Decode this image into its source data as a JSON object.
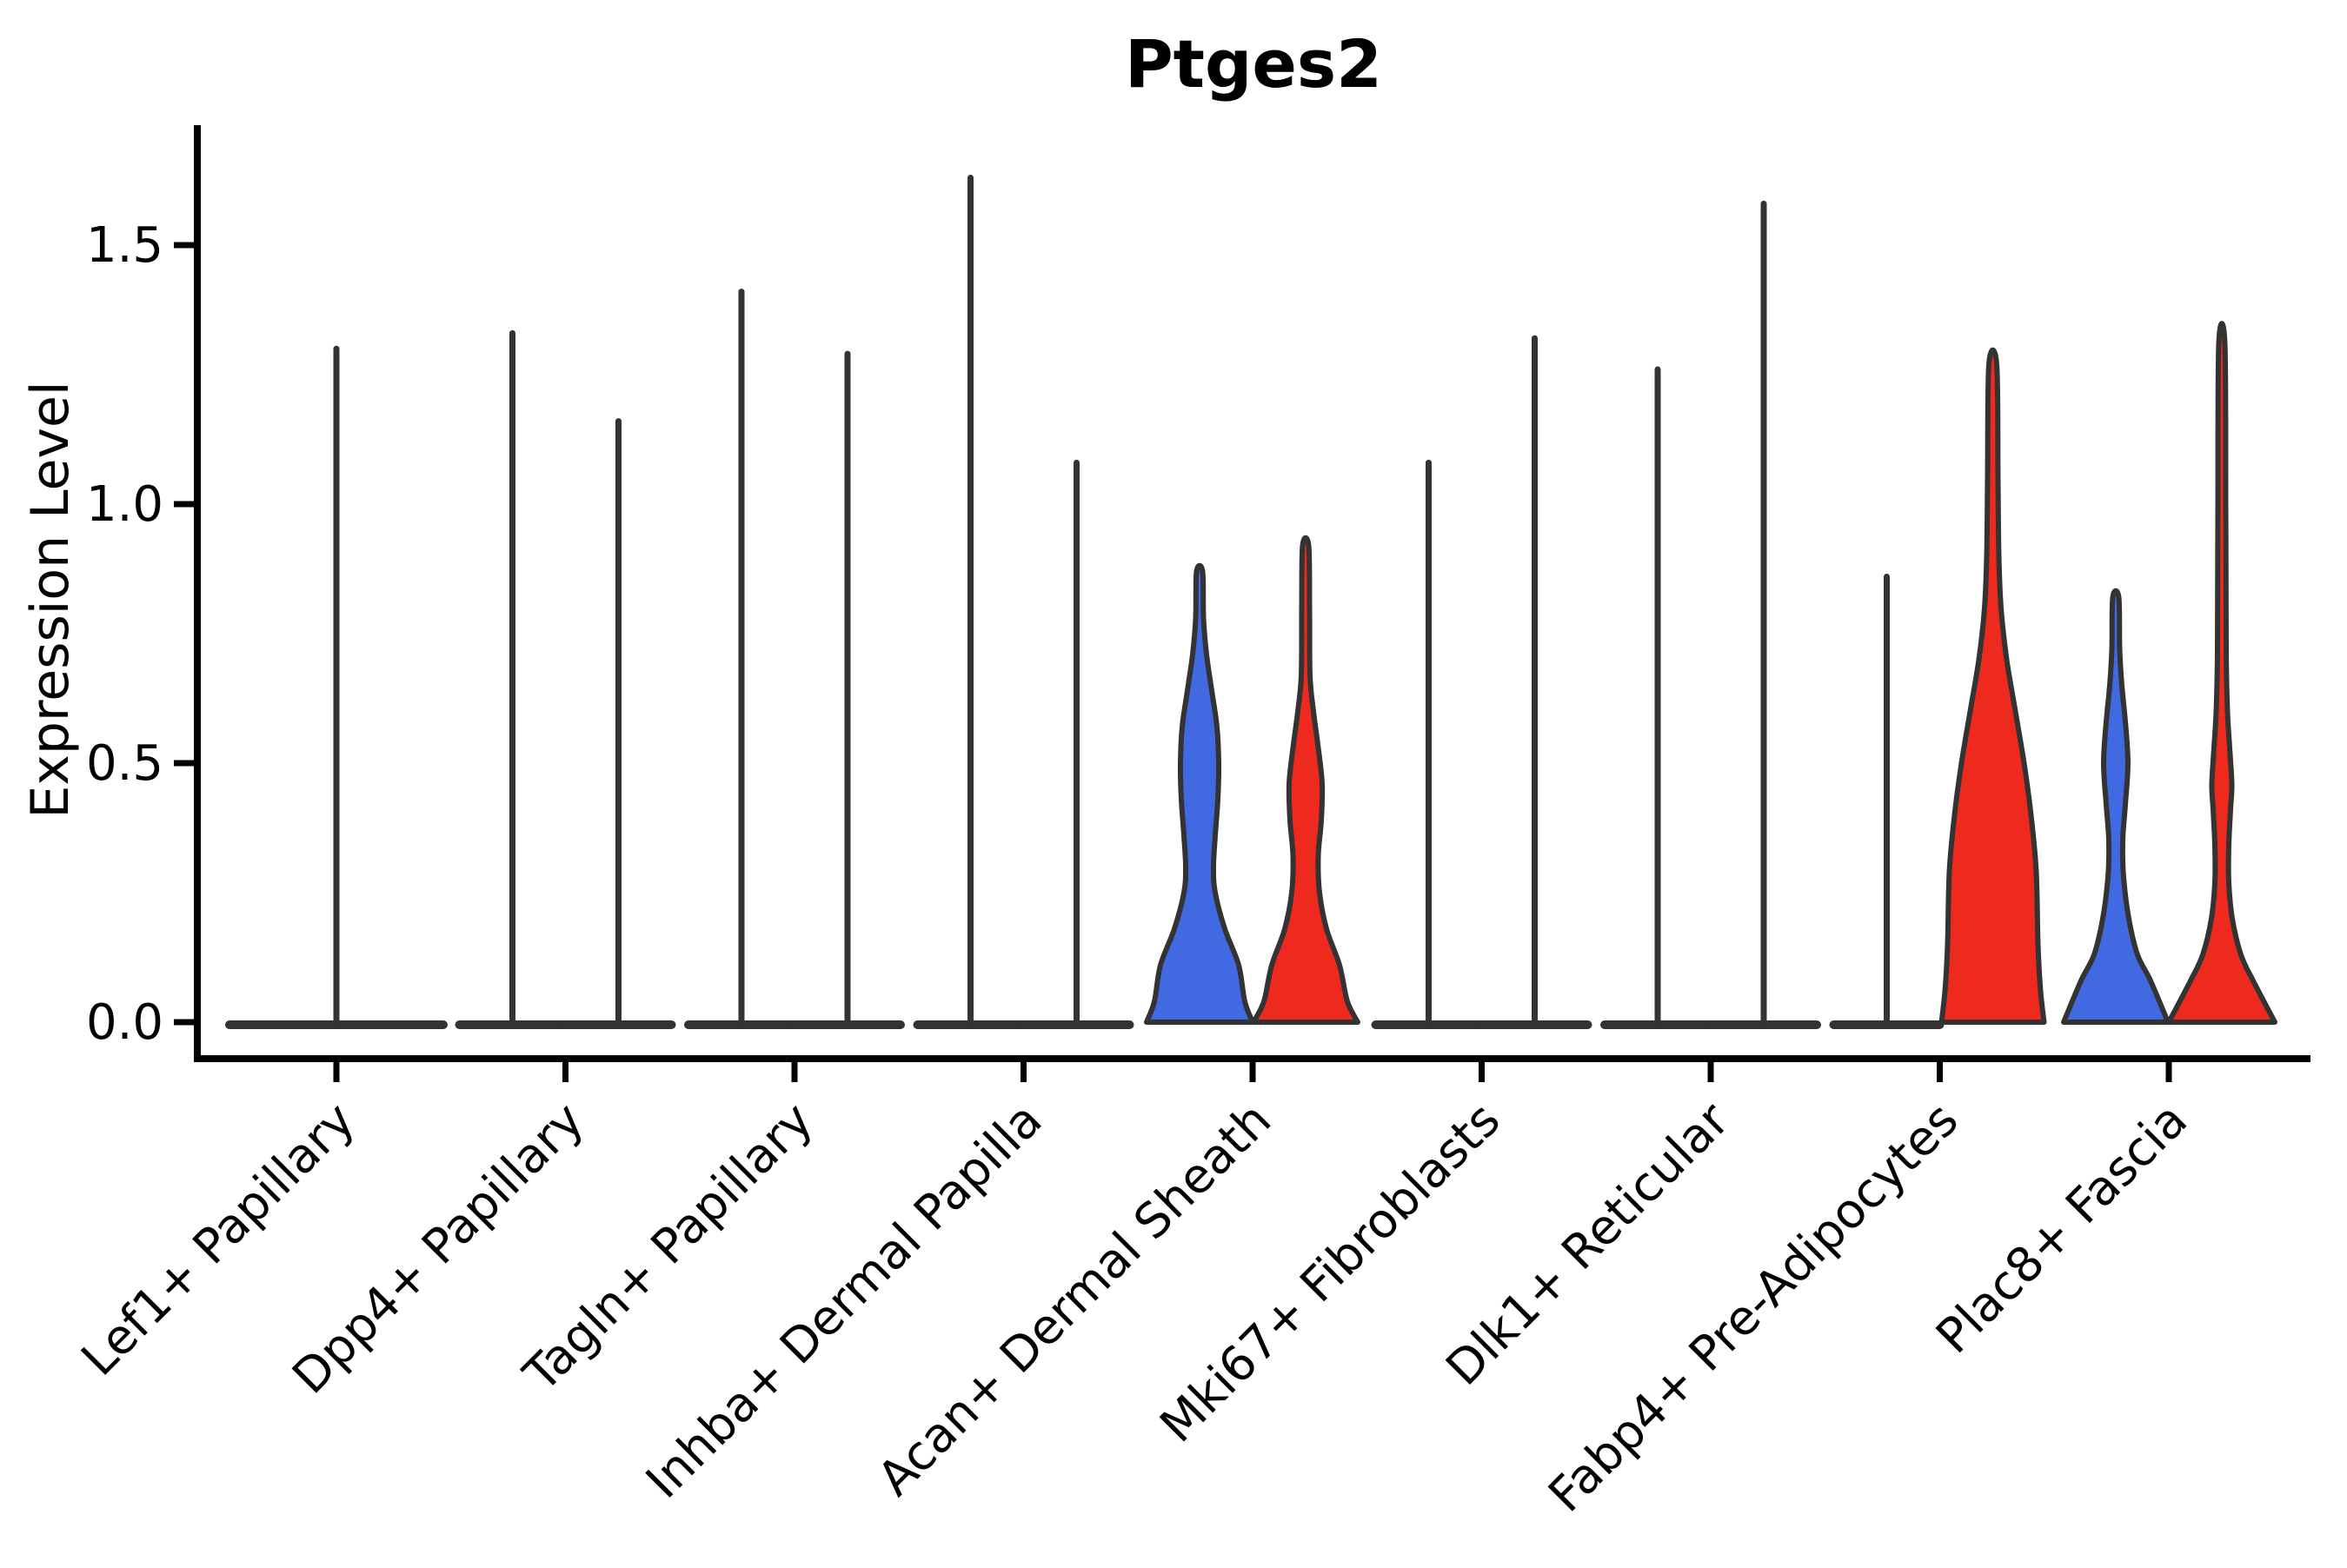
{
  "title": "Ptges2",
  "y_axis": {
    "label": "Expression Level"
  },
  "colors": {
    "group1_fill": "#4169E1",
    "group2_fill": "#EE2A1F",
    "violin_outline": "#333333",
    "axis_color": "#000000"
  },
  "chart_data": {
    "type": "violin",
    "title": "Ptges2",
    "xlabel": "",
    "ylabel": "Expression Level",
    "ylim": [
      0,
      1.73
    ],
    "yticks": [
      0.0,
      0.5,
      1.0,
      1.5
    ],
    "ytick_labels": [
      "0.0",
      "0.5",
      "1.0",
      "1.5"
    ],
    "grid": false,
    "legend_position": "none",
    "categories": [
      "Lef1+ Papillary",
      "Dpp4+ Papillary",
      "Tagln+ Papillary",
      "Inhba+ Dermal Papilla",
      "Acan+ Dermal Sheath",
      "Mki67+ Fibroblasts",
      "Dlk1+ Reticular",
      "Fabp4+ Pre-Adipocytes",
      "Plac8+ Fascia"
    ],
    "series": [
      {
        "name": "group-1-blue",
        "color": "#4169E1",
        "max_expression": [
          1.3,
          1.33,
          1.41,
          1.63,
          0.87,
          1.08,
          1.26,
          0.86,
          0.82
        ]
      },
      {
        "name": "group-2-red",
        "color": "#EE2A1F",
        "max_expression": [
          null,
          1.16,
          1.29,
          1.08,
          0.92,
          1.32,
          1.58,
          1.27,
          1.31
        ]
      }
    ],
    "violins": [
      {
        "category": "Lef1+ Papillary",
        "single": true,
        "items": [
          {
            "group": 0,
            "type": "spike",
            "top": 1.3
          }
        ]
      },
      {
        "category": "Dpp4+ Papillary",
        "items": [
          {
            "group": 0,
            "type": "spike",
            "top": 1.33
          },
          {
            "group": 1,
            "type": "spike",
            "top": 1.16
          }
        ]
      },
      {
        "category": "Tagln+ Papillary",
        "items": [
          {
            "group": 0,
            "type": "spike",
            "top": 1.41
          },
          {
            "group": 1,
            "type": "spike",
            "top": 1.29
          }
        ]
      },
      {
        "category": "Inhba+ Dermal Papilla",
        "items": [
          {
            "group": 0,
            "type": "spike",
            "top": 1.63
          },
          {
            "group": 1,
            "type": "spike",
            "top": 1.08
          }
        ]
      },
      {
        "category": "Acan+ Dermal Sheath",
        "items": [
          {
            "group": 0,
            "type": "shape",
            "top": 0.87,
            "profile": [
              [
                0,
                61
              ],
              [
                0.04,
                52
              ],
              [
                0.11,
                45
              ],
              [
                0.18,
                29
              ],
              [
                0.25,
                18
              ],
              [
                0.3,
                16
              ],
              [
                0.36,
                18
              ],
              [
                0.43,
                21
              ],
              [
                0.5,
                22
              ],
              [
                0.57,
                20
              ],
              [
                0.64,
                14
              ],
              [
                0.71,
                8
              ],
              [
                0.78,
                4.5
              ],
              [
                0.87,
                3.5
              ]
            ]
          },
          {
            "group": 1,
            "type": "shape",
            "top": 0.92,
            "profile": [
              [
                0,
                60
              ],
              [
                0.04,
                48
              ],
              [
                0.11,
                39
              ],
              [
                0.18,
                24
              ],
              [
                0.25,
                16
              ],
              [
                0.32,
                14.5
              ],
              [
                0.39,
                18
              ],
              [
                0.46,
                19
              ],
              [
                0.53,
                14.5
              ],
              [
                0.6,
                9
              ],
              [
                0.67,
                5
              ],
              [
                0.8,
                4.5
              ],
              [
                0.92,
                3.5
              ]
            ]
          }
        ]
      },
      {
        "category": "Mki67+ Fibroblasts",
        "items": [
          {
            "group": 0,
            "type": "spike",
            "top": 1.08
          },
          {
            "group": 1,
            "type": "spike",
            "top": 1.32
          }
        ]
      },
      {
        "category": "Dlk1+ Reticular",
        "items": [
          {
            "group": 0,
            "type": "spike",
            "top": 1.26
          },
          {
            "group": 1,
            "type": "spike",
            "top": 1.58
          }
        ]
      },
      {
        "category": "Fabp4+ Pre-Adipocytes",
        "items": [
          {
            "group": 0,
            "type": "spike",
            "top": 0.86
          },
          {
            "group": 1,
            "type": "shape",
            "top": 1.27,
            "profile": [
              [
                0,
                59
              ],
              [
                0.06,
                55
              ],
              [
                0.15,
                52
              ],
              [
                0.29,
                50
              ],
              [
                0.4,
                44
              ],
              [
                0.5,
                36
              ],
              [
                0.6,
                26
              ],
              [
                0.7,
                16
              ],
              [
                0.8,
                9.5
              ],
              [
                0.9,
                7
              ],
              [
                1.05,
                6
              ],
              [
                1.27,
                4.5
              ]
            ]
          }
        ]
      },
      {
        "category": "Plac8+ Fascia",
        "items": [
          {
            "group": 0,
            "type": "shape",
            "top": 0.82,
            "profile": [
              [
                0,
                60
              ],
              [
                0.08,
                40
              ],
              [
                0.13,
                25
              ],
              [
                0.2,
                15
              ],
              [
                0.28,
                9
              ],
              [
                0.35,
                8
              ],
              [
                0.42,
                11
              ],
              [
                0.5,
                14
              ],
              [
                0.58,
                11
              ],
              [
                0.65,
                7
              ],
              [
                0.72,
                4.5
              ],
              [
                0.82,
                3.5
              ]
            ]
          },
          {
            "group": 1,
            "type": "shape",
            "top": 1.31,
            "profile": [
              [
                0,
                61
              ],
              [
                0.08,
                36
              ],
              [
                0.13,
                22
              ],
              [
                0.2,
                12
              ],
              [
                0.27,
                8
              ],
              [
                0.34,
                8
              ],
              [
                0.41,
                10
              ],
              [
                0.46,
                11.5
              ],
              [
                0.53,
                9
              ],
              [
                0.6,
                6.5
              ],
              [
                0.72,
                5
              ],
              [
                1.0,
                4.5
              ],
              [
                1.31,
                3.5
              ]
            ]
          }
        ]
      }
    ]
  }
}
